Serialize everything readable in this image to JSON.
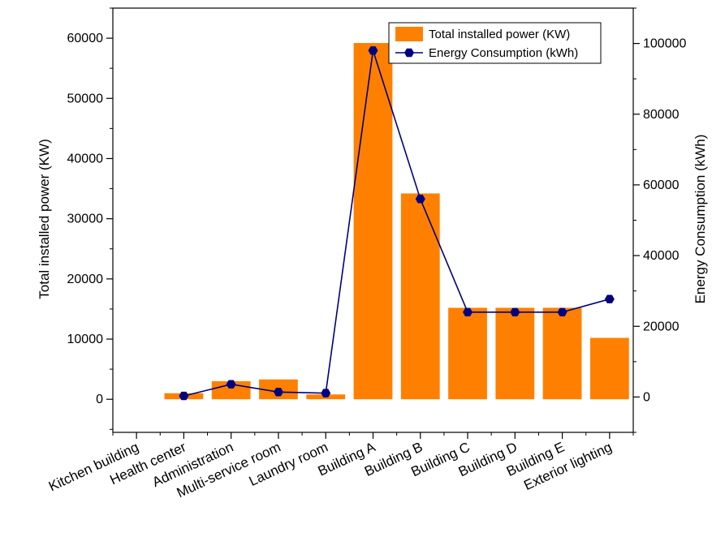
{
  "chart_data": {
    "type": "bar",
    "categories": [
      "Kitchen building",
      "Health center",
      "Administration",
      "Multi-service room",
      "Laundry room",
      "Building A",
      "Building B",
      "Building C",
      "Building D",
      "Building E",
      "Exterior lighting"
    ],
    "series": [
      {
        "name": "Total installed power (KW)",
        "type": "bar",
        "axis": "left",
        "color": "#ff8000",
        "values": [
          null,
          1000,
          3000,
          3300,
          800,
          59200,
          34200,
          15200,
          15200,
          15200,
          10200
        ]
      },
      {
        "name": "Energy Consumption (kWh)",
        "type": "line",
        "axis": "right",
        "color": "#000080",
        "marker": "hexagon",
        "values": [
          null,
          300,
          3600,
          1400,
          1100,
          98000,
          56000,
          24000,
          24000,
          24000,
          27700
        ]
      }
    ],
    "ylabel": "Total installed power (KW)",
    "ylabel_right": "Energy Consumption (kWh)",
    "ylim": [
      -5500,
      65000
    ],
    "ylim_right": [
      -10000,
      110000
    ],
    "yticks": [
      "0",
      "10000",
      "20000",
      "30000",
      "40000",
      "50000",
      "60000"
    ],
    "yticks_values": [
      0,
      10000,
      20000,
      30000,
      40000,
      50000,
      60000
    ],
    "yticks_right": [
      "0",
      "20000",
      "40000",
      "60000",
      "80000",
      "100000"
    ],
    "yticks_right_values": [
      0,
      20000,
      40000,
      60000,
      80000,
      100000
    ],
    "grid": false,
    "legend_position": "top-right"
  }
}
